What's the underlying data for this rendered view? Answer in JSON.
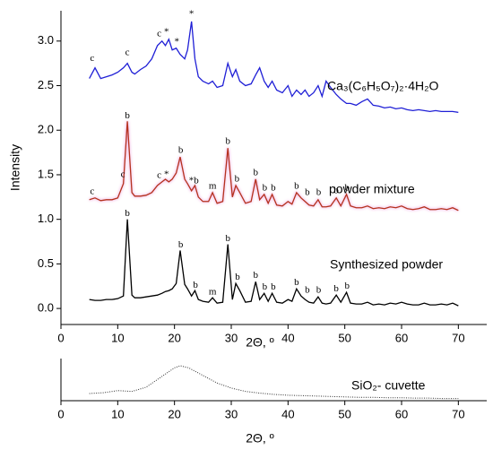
{
  "chart_data": [
    {
      "type": "line",
      "ylabel": "Intensity",
      "xlabel": "2Θ, º",
      "xlim": [
        0,
        75
      ],
      "xticks": [
        0,
        10,
        20,
        30,
        40,
        50,
        60,
        70
      ],
      "ylim": [
        -0.18,
        3.34
      ],
      "yticks": [
        {
          "value": 0,
          "label": "0.0"
        },
        0.5,
        {
          "value": 1,
          "label": "1.0"
        },
        1.5,
        {
          "value": 2,
          "label": "2.0"
        },
        2.5,
        {
          "value": 3,
          "label": "3.0"
        }
      ],
      "x": [
        5,
        6,
        7,
        8,
        9,
        10,
        11,
        11.7,
        12.5,
        13,
        14,
        15,
        16,
        17,
        17.8,
        18.4,
        19,
        19.6,
        20.3,
        21,
        21.8,
        22.3,
        23,
        23.6,
        24.2,
        25,
        26,
        26.7,
        27.5,
        28.5,
        29.4,
        30.2,
        30.8,
        31.5,
        32.5,
        33.5,
        34.3,
        35,
        35.8,
        36.5,
        37.2,
        38,
        39,
        40,
        40.7,
        41.5,
        42.3,
        43,
        43.7,
        44.5,
        45.3,
        46,
        46.7,
        47.5,
        48.5,
        49.3,
        50.3,
        51,
        52,
        53,
        54,
        55,
        56,
        57,
        58,
        59,
        60,
        61,
        62,
        63,
        64,
        65,
        66,
        67,
        68,
        69,
        70
      ],
      "series": [
        {
          "name": "Ca₃(C₆H₅O₇)₂·4H₂O",
          "color": "#1f1fd6",
          "values": [
            2.58,
            2.7,
            2.58,
            2.6,
            2.62,
            2.65,
            2.7,
            2.75,
            2.65,
            2.63,
            2.68,
            2.72,
            2.8,
            2.95,
            3.0,
            2.95,
            3.02,
            2.9,
            2.92,
            2.85,
            2.8,
            2.9,
            3.22,
            2.8,
            2.6,
            2.55,
            2.52,
            2.55,
            2.48,
            2.5,
            2.75,
            2.6,
            2.68,
            2.55,
            2.5,
            2.52,
            2.62,
            2.7,
            2.55,
            2.48,
            2.55,
            2.45,
            2.42,
            2.5,
            2.38,
            2.45,
            2.4,
            2.45,
            2.38,
            2.42,
            2.5,
            2.38,
            2.55,
            2.48,
            2.4,
            2.35,
            2.3,
            2.3,
            2.28,
            2.32,
            2.35,
            2.28,
            2.27,
            2.25,
            2.26,
            2.24,
            2.25,
            2.23,
            2.22,
            2.23,
            2.22,
            2.21,
            2.22,
            2.21,
            2.21,
            2.21,
            2.2
          ]
        },
        {
          "name": "powder mixture",
          "color": "#b5321e",
          "values": [
            1.22,
            1.24,
            1.21,
            1.22,
            1.22,
            1.24,
            1.4,
            2.1,
            1.3,
            1.26,
            1.26,
            1.27,
            1.3,
            1.38,
            1.42,
            1.45,
            1.42,
            1.45,
            1.52,
            1.7,
            1.45,
            1.4,
            1.32,
            1.38,
            1.25,
            1.2,
            1.2,
            1.3,
            1.18,
            1.2,
            1.8,
            1.25,
            1.38,
            1.3,
            1.18,
            1.2,
            1.45,
            1.22,
            1.28,
            1.18,
            1.28,
            1.16,
            1.15,
            1.2,
            1.17,
            1.3,
            1.24,
            1.2,
            1.16,
            1.15,
            1.22,
            1.14,
            1.14,
            1.15,
            1.24,
            1.15,
            1.28,
            1.15,
            1.13,
            1.13,
            1.15,
            1.12,
            1.13,
            1.12,
            1.14,
            1.13,
            1.15,
            1.12,
            1.11,
            1.12,
            1.14,
            1.11,
            1.11,
            1.12,
            1.11,
            1.13,
            1.1
          ]
        },
        {
          "name": "Synthesized powder",
          "color": "#000000",
          "values": [
            0.1,
            0.09,
            0.09,
            0.1,
            0.1,
            0.11,
            0.14,
            1.0,
            0.15,
            0.12,
            0.12,
            0.13,
            0.14,
            0.15,
            0.17,
            0.19,
            0.2,
            0.22,
            0.28,
            0.65,
            0.27,
            0.22,
            0.14,
            0.2,
            0.1,
            0.08,
            0.07,
            0.12,
            0.06,
            0.07,
            0.72,
            0.1,
            0.28,
            0.2,
            0.07,
            0.08,
            0.3,
            0.1,
            0.17,
            0.08,
            0.17,
            0.07,
            0.06,
            0.1,
            0.08,
            0.22,
            0.14,
            0.1,
            0.07,
            0.06,
            0.13,
            0.06,
            0.05,
            0.06,
            0.15,
            0.07,
            0.18,
            0.06,
            0.05,
            0.05,
            0.07,
            0.04,
            0.05,
            0.04,
            0.06,
            0.05,
            0.07,
            0.05,
            0.04,
            0.04,
            0.06,
            0.04,
            0.04,
            0.05,
            0.04,
            0.06,
            0.03
          ]
        }
      ],
      "annotations": [
        {
          "text": "c",
          "x": 5.5,
          "y": 2.8
        },
        {
          "text": "c",
          "x": 11.7,
          "y": 2.87
        },
        {
          "text": "c",
          "x": 17.3,
          "y": 3.08
        },
        {
          "text": "*",
          "x": 18.6,
          "y": 3.1
        },
        {
          "text": "*",
          "x": 20.4,
          "y": 2.99
        },
        {
          "text": "*",
          "x": 23,
          "y": 3.3
        },
        {
          "text": "c",
          "x": 5.5,
          "y": 1.31
        },
        {
          "text": "c",
          "x": 10.9,
          "y": 1.5
        },
        {
          "text": "b",
          "x": 11.7,
          "y": 2.16
        },
        {
          "text": "c",
          "x": 17.3,
          "y": 1.49
        },
        {
          "text": "*",
          "x": 18.6,
          "y": 1.5
        },
        {
          "text": "b",
          "x": 21.1,
          "y": 1.77
        },
        {
          "text": "*b",
          "x": 23.4,
          "y": 1.43
        },
        {
          "text": "m",
          "x": 26.7,
          "y": 1.37
        },
        {
          "text": "b",
          "x": 29.4,
          "y": 1.87
        },
        {
          "text": "b",
          "x": 31,
          "y": 1.45
        },
        {
          "text": "b",
          "x": 34.3,
          "y": 1.52
        },
        {
          "text": "b",
          "x": 35.9,
          "y": 1.35
        },
        {
          "text": "b",
          "x": 37.4,
          "y": 1.35
        },
        {
          "text": "b",
          "x": 41.5,
          "y": 1.37
        },
        {
          "text": "b",
          "x": 43.4,
          "y": 1.3
        },
        {
          "text": "b",
          "x": 45.4,
          "y": 1.3
        },
        {
          "text": "b",
          "x": 48.5,
          "y": 1.32
        },
        {
          "text": "b",
          "x": 50.4,
          "y": 1.35
        },
        {
          "text": "b",
          "x": 11.7,
          "y": 1.06
        },
        {
          "text": "b",
          "x": 21.1,
          "y": 0.71
        },
        {
          "text": "b",
          "x": 23.7,
          "y": 0.26
        },
        {
          "text": "m",
          "x": 26.7,
          "y": 0.18
        },
        {
          "text": "b",
          "x": 29.4,
          "y": 0.78
        },
        {
          "text": "b",
          "x": 31.1,
          "y": 0.35
        },
        {
          "text": "b",
          "x": 34.3,
          "y": 0.37
        },
        {
          "text": "b",
          "x": 35.9,
          "y": 0.24
        },
        {
          "text": "b",
          "x": 37.4,
          "y": 0.24
        },
        {
          "text": "b",
          "x": 41.5,
          "y": 0.29
        },
        {
          "text": "b",
          "x": 43.4,
          "y": 0.2
        },
        {
          "text": "b",
          "x": 45.4,
          "y": 0.2
        },
        {
          "text": "b",
          "x": 48.5,
          "y": 0.22
        },
        {
          "text": "b",
          "x": 50.4,
          "y": 0.25
        }
      ]
    },
    {
      "type": "line",
      "xlabel": "2Θ, º",
      "xlim": [
        0,
        75
      ],
      "xticks": [
        0,
        10,
        20,
        30,
        40,
        50,
        60,
        70
      ],
      "ylim": [
        0,
        1
      ],
      "x": [
        5,
        7.5,
        10,
        12.5,
        15,
        17.5,
        20,
        21,
        22.5,
        25,
        27.5,
        30,
        32.5,
        35,
        37.5,
        40,
        42.5,
        45,
        47.5,
        50,
        52.5,
        55,
        57.5,
        60,
        62.5,
        65,
        67.5,
        70
      ],
      "series": [
        {
          "name": "SiO₂- cuvette",
          "color": "#333333",
          "dotted": true,
          "values": [
            0.17,
            0.19,
            0.24,
            0.22,
            0.32,
            0.55,
            0.78,
            0.83,
            0.78,
            0.6,
            0.42,
            0.3,
            0.22,
            0.18,
            0.15,
            0.13,
            0.12,
            0.11,
            0.1,
            0.09,
            0.08,
            0.08,
            0.07,
            0.07,
            0.06,
            0.06,
            0.05,
            0.05
          ]
        }
      ]
    }
  ]
}
